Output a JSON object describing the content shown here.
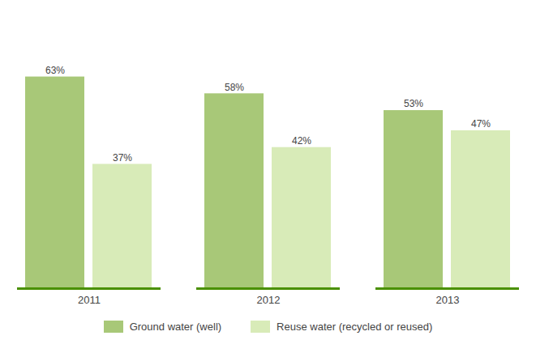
{
  "chart_data": {
    "type": "bar",
    "categories": [
      "2011",
      "2012",
      "2013"
    ],
    "series": [
      {
        "name": "Ground water (well)",
        "color": "#a8c878",
        "values": [
          63,
          58,
          53
        ],
        "value_labels": [
          "63%",
          "58%",
          "53%"
        ]
      },
      {
        "name": "Reuse water (recycled or reused)",
        "color": "#d8ebb8",
        "values": [
          37,
          42,
          47
        ],
        "value_labels": [
          "37%",
          "42%",
          "47%"
        ]
      }
    ],
    "ylim": [
      0,
      80
    ],
    "data_labels": true,
    "tick_labels": "x",
    "grid": false,
    "legend": "bottom"
  }
}
